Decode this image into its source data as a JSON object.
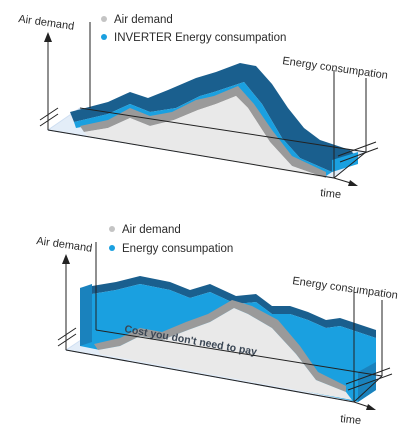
{
  "colors": {
    "air_demand": "#c4c4c4",
    "energy": "#1aa0e0",
    "energy_dark": "#1a5f8e",
    "top_face": "#e9e9e9",
    "ground": "#cfdff2",
    "axis": "#222222"
  },
  "diagrams": [
    {
      "y_axis_label": "Air demand",
      "x_axis_label": "time",
      "legend": [
        {
          "label": "Air demand",
          "color": "#c4c4c4"
        },
        {
          "label": "INVERTER Energy consumpation",
          "color": "#1aa0e0"
        }
      ],
      "right_label": "Energy consumpation"
    },
    {
      "y_axis_label": "Air demand",
      "x_axis_label": "time",
      "legend": [
        {
          "label": "Air demand",
          "color": "#c4c4c4"
        },
        {
          "label": "Energy consumpation",
          "color": "#1aa0e0"
        }
      ],
      "right_label": "Energy consumpation",
      "annotation": "Cost you don't need to pay"
    }
  ]
}
